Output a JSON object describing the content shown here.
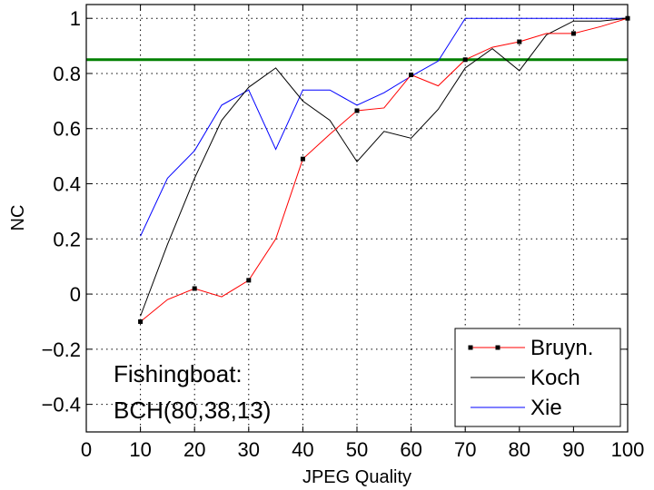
{
  "chart_data": {
    "type": "line",
    "title": "",
    "xlabel": "JPEG Quality",
    "ylabel": "NC",
    "xlim": [
      0,
      100
    ],
    "ylim": [
      -0.5,
      1.05
    ],
    "xticks": [
      0,
      10,
      20,
      30,
      40,
      50,
      60,
      70,
      80,
      90,
      100
    ],
    "yticks": [
      -0.4,
      -0.2,
      0,
      0.2,
      0.4,
      0.6,
      0.8,
      1
    ],
    "ytick_labels": [
      "−0.4",
      "−0.2",
      "0",
      "0.2",
      "0.4",
      "0.6",
      "0.8",
      "1"
    ],
    "grid": true,
    "legend_position": "bottom-right",
    "threshold": {
      "y": 0.85,
      "color": "#008000"
    },
    "series": [
      {
        "name": "Bruyn.",
        "color": "#ff0000",
        "marker": "square",
        "x": [
          10,
          15,
          20,
          25,
          30,
          35,
          40,
          45,
          50,
          55,
          60,
          65,
          70,
          75,
          80,
          85,
          90,
          95,
          100
        ],
        "y": [
          -0.1,
          -0.02,
          0.02,
          -0.01,
          0.05,
          0.2,
          0.49,
          0.58,
          0.665,
          0.675,
          0.795,
          0.755,
          0.85,
          0.895,
          0.915,
          0.945,
          0.945,
          0.97,
          1.0
        ]
      },
      {
        "name": "Koch",
        "color": "#000000",
        "marker": "none",
        "x": [
          10,
          15,
          20,
          25,
          30,
          35,
          40,
          45,
          50,
          55,
          60,
          65,
          70,
          75,
          80,
          85,
          90,
          95,
          100
        ],
        "y": [
          -0.08,
          0.18,
          0.42,
          0.63,
          0.75,
          0.82,
          0.7,
          0.63,
          0.48,
          0.59,
          0.565,
          0.67,
          0.82,
          0.89,
          0.81,
          0.94,
          0.99,
          0.99,
          1.0
        ]
      },
      {
        "name": "Xie",
        "color": "#0000ff",
        "marker": "none",
        "x": [
          10,
          15,
          20,
          25,
          30,
          35,
          40,
          45,
          50,
          55,
          60,
          65,
          70,
          75,
          80,
          85,
          90,
          95,
          100
        ],
        "y": [
          0.21,
          0.42,
          0.52,
          0.685,
          0.74,
          0.525,
          0.74,
          0.74,
          0.685,
          0.73,
          0.79,
          0.845,
          1.0,
          1.0,
          1.0,
          1.0,
          1.0,
          1.0,
          1.0
        ]
      }
    ],
    "annotations": [
      "Fishingboat:",
      "BCH(80,38,13)"
    ]
  }
}
